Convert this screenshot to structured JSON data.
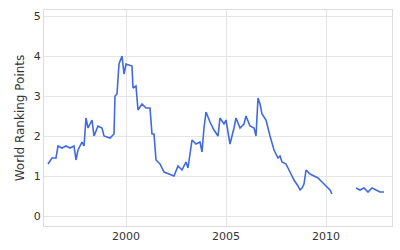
{
  "chart_data": {
    "type": "line",
    "y_label": "World Ranking Points",
    "x": [
      1996.1,
      1996.3,
      1996.5,
      1996.6,
      1996.8,
      1997.0,
      1997.2,
      1997.4,
      1997.5,
      1997.6,
      1997.8,
      1997.9,
      1998.0,
      1998.1,
      1998.3,
      1998.4,
      1998.6,
      1998.8,
      1998.9,
      1999.2,
      1999.4,
      1999.45,
      1999.55,
      1999.65,
      1999.8,
      1999.9,
      2000.0,
      2000.3,
      2000.35,
      2000.5,
      2000.6,
      2000.8,
      2001.0,
      2001.2,
      2001.3,
      2001.4,
      2001.5,
      2001.7,
      2001.9,
      2002.2,
      2002.4,
      2002.6,
      2002.8,
      2003.0,
      2003.1,
      2003.3,
      2003.5,
      2003.7,
      2003.8,
      2003.9,
      2004.0,
      2004.2,
      2004.4,
      2004.6,
      2004.7,
      2004.9,
      2005.0,
      2005.1,
      2005.2,
      2005.4,
      2005.5,
      2005.7,
      2005.9,
      2006.0,
      2006.2,
      2006.4,
      2006.5,
      2006.6,
      2006.7,
      2006.8,
      2007.0,
      2007.2,
      2007.4,
      2007.6,
      2007.7,
      2007.8,
      2008.0,
      2008.2,
      2008.4,
      2008.6,
      2008.7,
      2008.8,
      2008.9,
      2009.0,
      2009.2,
      2009.4,
      2009.6,
      2009.8,
      2009.9,
      2010.0,
      2010.2,
      2010.3,
      2010.9,
      2011.5,
      2011.7,
      2011.9,
      2012.1,
      2012.3,
      2012.5,
      2012.7,
      2012.9
    ],
    "values": [
      1.3,
      1.45,
      1.45,
      1.75,
      1.7,
      1.75,
      1.7,
      1.75,
      1.4,
      1.65,
      1.85,
      1.75,
      2.45,
      2.2,
      2.4,
      2.0,
      2.25,
      2.2,
      2.0,
      1.95,
      2.05,
      3.0,
      3.05,
      3.8,
      4.0,
      3.55,
      3.8,
      3.75,
      3.2,
      3.25,
      2.65,
      2.8,
      2.7,
      2.7,
      2.05,
      2.05,
      1.4,
      1.3,
      1.1,
      1.05,
      1.0,
      1.25,
      1.15,
      1.35,
      1.2,
      1.9,
      1.8,
      1.85,
      1.6,
      2.2,
      2.6,
      2.35,
      2.15,
      2.0,
      2.45,
      2.3,
      2.4,
      2.1,
      1.8,
      2.2,
      2.45,
      2.2,
      2.3,
      2.5,
      2.25,
      2.2,
      2.0,
      2.95,
      2.8,
      2.55,
      2.4,
      2.0,
      1.65,
      1.45,
      1.5,
      1.35,
      1.3,
      1.1,
      0.9,
      0.75,
      0.65,
      0.7,
      0.8,
      1.15,
      1.05,
      1.0,
      0.95,
      0.85,
      0.8,
      0.75,
      0.65,
      0.55,
      null,
      0.7,
      0.65,
      0.7,
      0.6,
      0.7,
      0.65,
      0.6,
      0.6
    ],
    "color": "#4169e1",
    "line_style": "solid",
    "xlim": [
      1995.9,
      2013.3
    ],
    "xticks": [
      2000,
      2005,
      2010
    ],
    "ylim": [
      -0.25,
      5.15
    ],
    "yticks": [
      0,
      1,
      2,
      3,
      4,
      5
    ],
    "grid": true
  }
}
